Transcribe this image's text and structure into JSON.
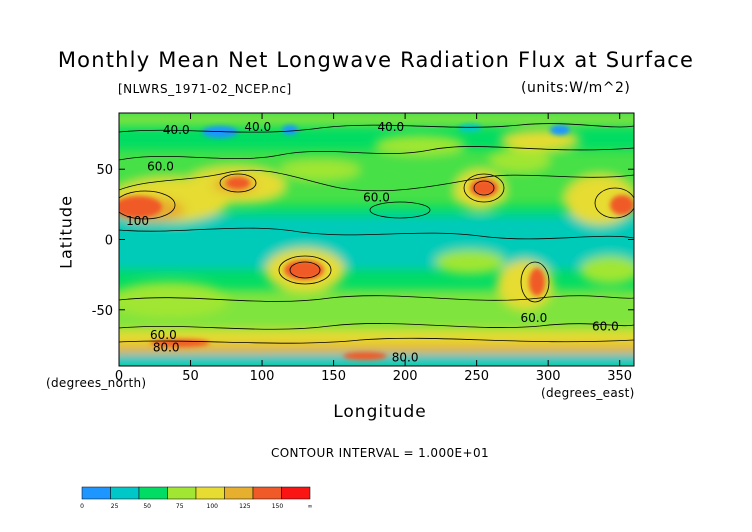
{
  "chart_data": {
    "type": "heatmap",
    "title": "Monthly Mean Net Longwave Radiation Flux at Surface",
    "source_file": "[NLWRS_1971-02_NCEP.nc]",
    "units": "(units:W/m^2)",
    "xlabel": "Longitude",
    "ylabel": "Latitude",
    "x_unit_note": "(degrees_east)",
    "y_unit_note": "(degrees_north)",
    "xlim": [
      0,
      360
    ],
    "ylim": [
      -90,
      90
    ],
    "x_ticks": [
      0,
      50,
      100,
      150,
      200,
      250,
      300,
      350
    ],
    "y_ticks": [
      50,
      0,
      -50
    ],
    "contour_interval": "CONTOUR INTERVAL = 1.000E+01",
    "contour_labels": [
      {
        "text": "40.0",
        "lon": 40,
        "lat": 78
      },
      {
        "text": "40.0",
        "lon": 97,
        "lat": 80
      },
      {
        "text": "40.0",
        "lon": 190,
        "lat": 80
      },
      {
        "text": "60.0",
        "lon": 29,
        "lat": 52
      },
      {
        "text": "60.0",
        "lon": 180,
        "lat": 30
      },
      {
        "text": "60.0",
        "lon": 290,
        "lat": -56
      },
      {
        "text": "60.0",
        "lon": 340,
        "lat": -62
      },
      {
        "text": "60.0",
        "lon": 31,
        "lat": -68
      },
      {
        "text": "80.0",
        "lon": 33,
        "lat": -77
      },
      {
        "text": "80.0",
        "lon": 200,
        "lat": -84
      },
      {
        "text": "100",
        "lon": 13,
        "lat": 13
      }
    ],
    "colorbar": {
      "levels": [
        "0",
        "25",
        "50",
        "75",
        "100",
        "125",
        "150",
        "∞"
      ],
      "colors": [
        "#1e96ff",
        "#00c8c8",
        "#00dc64",
        "#a0e632",
        "#e6dc32",
        "#e6af2d",
        "#f05a28",
        "#fa1414"
      ]
    }
  }
}
